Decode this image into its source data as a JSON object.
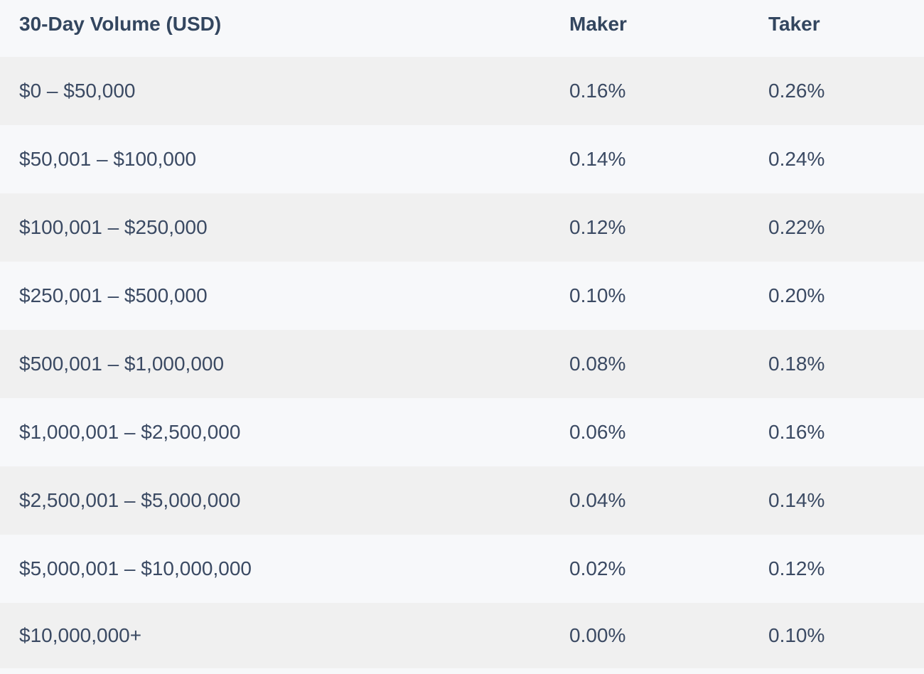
{
  "table": {
    "headers": {
      "volume": "30-Day Volume (USD)",
      "maker": "Maker",
      "taker": "Taker"
    },
    "rows": [
      {
        "volume": "$0 – $50,000",
        "maker": "0.16%",
        "taker": "0.26%"
      },
      {
        "volume": "$50,001 – $100,000",
        "maker": "0.14%",
        "taker": "0.24%"
      },
      {
        "volume": "$100,001 – $250,000",
        "maker": "0.12%",
        "taker": "0.22%"
      },
      {
        "volume": "$250,001 – $500,000",
        "maker": "0.10%",
        "taker": "0.20%"
      },
      {
        "volume": "$500,001 – $1,000,000",
        "maker": "0.08%",
        "taker": "0.18%"
      },
      {
        "volume": "$1,000,001 – $2,500,000",
        "maker": "0.06%",
        "taker": "0.16%"
      },
      {
        "volume": "$2,500,001 – $5,000,000",
        "maker": "0.04%",
        "taker": "0.14%"
      },
      {
        "volume": "$5,000,001 – $10,000,000",
        "maker": "0.02%",
        "taker": "0.12%"
      },
      {
        "volume": "$10,000,000+",
        "maker": "0.00%",
        "taker": "0.10%"
      }
    ]
  }
}
